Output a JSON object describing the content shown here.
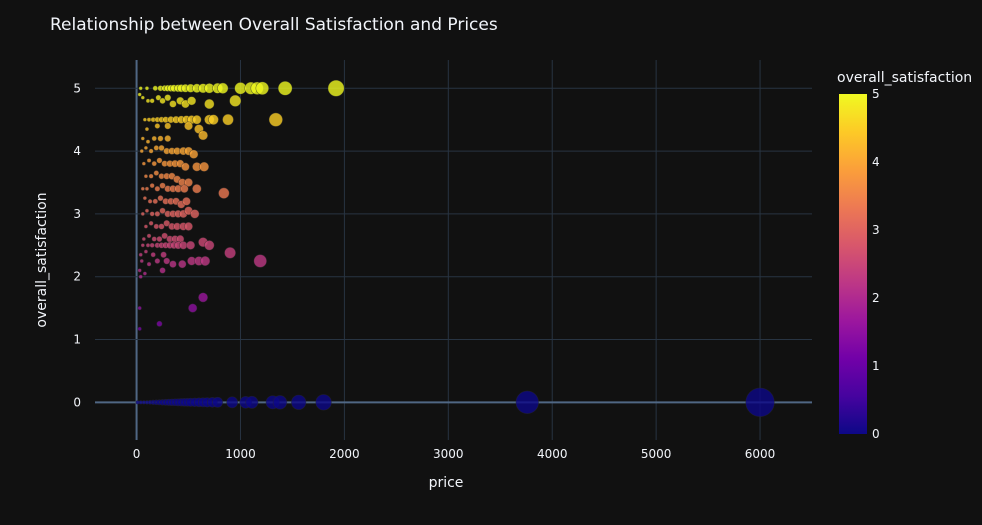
{
  "chart_data": {
    "type": "scatter",
    "title": "Relationship between Overall Satisfaction and Prices",
    "xlabel": "price",
    "ylabel": "overall_satisfaction",
    "xlim": [
      -400,
      6500
    ],
    "ylim": [
      -0.6,
      5.45
    ],
    "x_ticks": [
      0,
      1000,
      2000,
      3000,
      4000,
      5000,
      6000
    ],
    "y_ticks": [
      0,
      1,
      2,
      3,
      4,
      5
    ],
    "grid": true,
    "colorbar": {
      "title": "overall_satisfaction",
      "min": 0,
      "max": 5,
      "ticks": [
        0,
        1,
        2,
        3,
        4,
        5
      ],
      "colors": [
        "#0d0887",
        "#46039f",
        "#7201a8",
        "#9c179e",
        "#bd3786",
        "#d8576b",
        "#ed7953",
        "#fb9f3a",
        "#fdca26",
        "#f0f921"
      ]
    },
    "points": [
      [
        40,
        5
      ],
      [
        100,
        5
      ],
      [
        180,
        5
      ],
      [
        230,
        5
      ],
      [
        270,
        5
      ],
      [
        300,
        5
      ],
      [
        330,
        5
      ],
      [
        360,
        5
      ],
      [
        400,
        5
      ],
      [
        430,
        5
      ],
      [
        470,
        5
      ],
      [
        520,
        5
      ],
      [
        580,
        5
      ],
      [
        640,
        5
      ],
      [
        700,
        5
      ],
      [
        780,
        5
      ],
      [
        830,
        5
      ],
      [
        1000,
        5
      ],
      [
        1100,
        5
      ],
      [
        1160,
        5
      ],
      [
        1210,
        5
      ],
      [
        1430,
        5
      ],
      [
        1920,
        5
      ],
      [
        30,
        4.9
      ],
      [
        60,
        4.85
      ],
      [
        110,
        4.8
      ],
      [
        150,
        4.8
      ],
      [
        210,
        4.85
      ],
      [
        250,
        4.8
      ],
      [
        300,
        4.85
      ],
      [
        350,
        4.75
      ],
      [
        420,
        4.8
      ],
      [
        470,
        4.75
      ],
      [
        530,
        4.8
      ],
      [
        700,
        4.75
      ],
      [
        950,
        4.8
      ],
      [
        80,
        4.5
      ],
      [
        120,
        4.5
      ],
      [
        160,
        4.5
      ],
      [
        200,
        4.5
      ],
      [
        240,
        4.5
      ],
      [
        280,
        4.5
      ],
      [
        330,
        4.5
      ],
      [
        380,
        4.5
      ],
      [
        430,
        4.5
      ],
      [
        480,
        4.5
      ],
      [
        530,
        4.5
      ],
      [
        580,
        4.5
      ],
      [
        700,
        4.5
      ],
      [
        740,
        4.5
      ],
      [
        880,
        4.5
      ],
      [
        1340,
        4.5
      ],
      [
        100,
        4.35
      ],
      [
        200,
        4.4
      ],
      [
        300,
        4.4
      ],
      [
        500,
        4.4
      ],
      [
        600,
        4.35
      ],
      [
        60,
        4.2
      ],
      [
        110,
        4.15
      ],
      [
        170,
        4.2
      ],
      [
        230,
        4.2
      ],
      [
        300,
        4.2
      ],
      [
        640,
        4.25
      ],
      [
        50,
        4
      ],
      [
        90,
        4.05
      ],
      [
        140,
        4
      ],
      [
        190,
        4.05
      ],
      [
        240,
        4.05
      ],
      [
        290,
        4
      ],
      [
        340,
        4
      ],
      [
        390,
        4
      ],
      [
        450,
        4
      ],
      [
        500,
        4
      ],
      [
        550,
        3.95
      ],
      [
        70,
        3.8
      ],
      [
        120,
        3.85
      ],
      [
        170,
        3.8
      ],
      [
        220,
        3.85
      ],
      [
        270,
        3.8
      ],
      [
        320,
        3.8
      ],
      [
        370,
        3.8
      ],
      [
        420,
        3.8
      ],
      [
        470,
        3.75
      ],
      [
        580,
        3.75
      ],
      [
        650,
        3.75
      ],
      [
        90,
        3.6
      ],
      [
        140,
        3.6
      ],
      [
        190,
        3.65
      ],
      [
        240,
        3.6
      ],
      [
        290,
        3.6
      ],
      [
        340,
        3.6
      ],
      [
        390,
        3.55
      ],
      [
        440,
        3.5
      ],
      [
        500,
        3.5
      ],
      [
        60,
        3.4
      ],
      [
        100,
        3.4
      ],
      [
        150,
        3.45
      ],
      [
        200,
        3.4
      ],
      [
        250,
        3.45
      ],
      [
        300,
        3.4
      ],
      [
        350,
        3.4
      ],
      [
        400,
        3.4
      ],
      [
        460,
        3.4
      ],
      [
        580,
        3.4
      ],
      [
        840,
        3.33
      ],
      [
        80,
        3.25
      ],
      [
        130,
        3.2
      ],
      [
        180,
        3.2
      ],
      [
        230,
        3.25
      ],
      [
        280,
        3.2
      ],
      [
        330,
        3.2
      ],
      [
        380,
        3.2
      ],
      [
        430,
        3.15
      ],
      [
        480,
        3.2
      ],
      [
        60,
        3
      ],
      [
        100,
        3.05
      ],
      [
        150,
        3
      ],
      [
        200,
        3
      ],
      [
        250,
        3.05
      ],
      [
        300,
        3
      ],
      [
        350,
        3
      ],
      [
        400,
        3
      ],
      [
        450,
        3
      ],
      [
        500,
        3.05
      ],
      [
        560,
        3
      ],
      [
        90,
        2.8
      ],
      [
        140,
        2.85
      ],
      [
        190,
        2.8
      ],
      [
        240,
        2.8
      ],
      [
        290,
        2.85
      ],
      [
        340,
        2.8
      ],
      [
        390,
        2.8
      ],
      [
        450,
        2.8
      ],
      [
        500,
        2.8
      ],
      [
        70,
        2.6
      ],
      [
        120,
        2.65
      ],
      [
        170,
        2.6
      ],
      [
        220,
        2.6
      ],
      [
        270,
        2.65
      ],
      [
        320,
        2.6
      ],
      [
        370,
        2.6
      ],
      [
        420,
        2.6
      ],
      [
        60,
        2.5
      ],
      [
        110,
        2.5
      ],
      [
        150,
        2.5
      ],
      [
        200,
        2.5
      ],
      [
        240,
        2.5
      ],
      [
        280,
        2.5
      ],
      [
        320,
        2.5
      ],
      [
        360,
        2.5
      ],
      [
        400,
        2.5
      ],
      [
        450,
        2.5
      ],
      [
        520,
        2.5
      ],
      [
        640,
        2.55
      ],
      [
        700,
        2.5
      ],
      [
        40,
        2.35
      ],
      [
        90,
        2.4
      ],
      [
        160,
        2.35
      ],
      [
        260,
        2.35
      ],
      [
        900,
        2.38
      ],
      [
        50,
        2.25
      ],
      [
        120,
        2.2
      ],
      [
        200,
        2.25
      ],
      [
        290,
        2.25
      ],
      [
        350,
        2.2
      ],
      [
        440,
        2.2
      ],
      [
        530,
        2.25
      ],
      [
        600,
        2.25
      ],
      [
        660,
        2.25
      ],
      [
        1190,
        2.25
      ],
      [
        30,
        2.1
      ],
      [
        40,
        2.0
      ],
      [
        80,
        2.05
      ],
      [
        250,
        2.1
      ],
      [
        640,
        1.67
      ],
      [
        540,
        1.5
      ],
      [
        30,
        1.5
      ],
      [
        220,
        1.25
      ],
      [
        30,
        1.17
      ],
      [
        10,
        0
      ],
      [
        40,
        0
      ],
      [
        70,
        0
      ],
      [
        100,
        0
      ],
      [
        130,
        0
      ],
      [
        160,
        0
      ],
      [
        190,
        0
      ],
      [
        220,
        0
      ],
      [
        250,
        0
      ],
      [
        280,
        0
      ],
      [
        310,
        0
      ],
      [
        340,
        0
      ],
      [
        370,
        0
      ],
      [
        400,
        0
      ],
      [
        430,
        0
      ],
      [
        460,
        0
      ],
      [
        490,
        0
      ],
      [
        520,
        0
      ],
      [
        560,
        0
      ],
      [
        600,
        0
      ],
      [
        640,
        0
      ],
      [
        680,
        0
      ],
      [
        730,
        0
      ],
      [
        780,
        0
      ],
      [
        920,
        0
      ],
      [
        1050,
        0
      ],
      [
        1110,
        0
      ],
      [
        1310,
        0
      ],
      [
        1380,
        0
      ],
      [
        1560,
        0
      ],
      [
        1800,
        0
      ],
      [
        3760,
        0
      ],
      [
        6000,
        0
      ]
    ]
  }
}
